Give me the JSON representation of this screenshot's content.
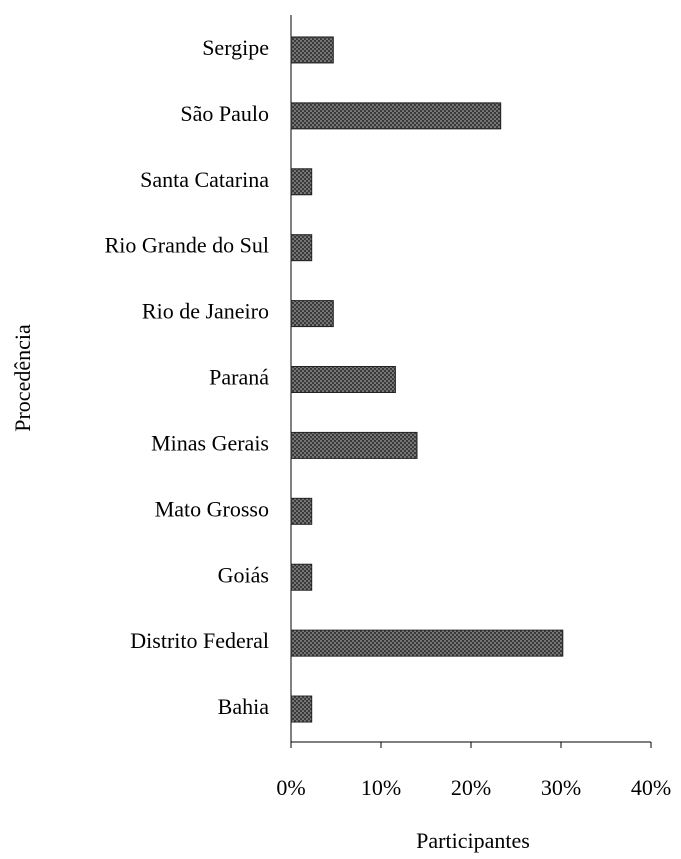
{
  "chart_data": {
    "type": "barh",
    "ylabel": "Procedência",
    "xlabel": "Participantes",
    "categories": [
      "Sergipe",
      "São Paulo",
      "Santa Catarina",
      "Rio Grande do Sul",
      "Rio de Janeiro",
      "Paraná",
      "Minas Gerais",
      "Mato Grosso",
      "Goiás",
      "Distrito Federal",
      "Bahia"
    ],
    "values": [
      4.7,
      23.3,
      2.3,
      2.3,
      4.7,
      11.6,
      14.0,
      2.3,
      2.3,
      30.2,
      2.3
    ],
    "color": "#3a3a3a",
    "xlim": [
      0,
      40
    ],
    "xticks": [
      {
        "value": 0,
        "label": "0%"
      },
      {
        "value": 10,
        "label": "10%"
      },
      {
        "value": 20,
        "label": "20%"
      },
      {
        "value": 30,
        "label": "30%"
      },
      {
        "value": 40,
        "label": "40%"
      }
    ],
    "grid": false
  }
}
